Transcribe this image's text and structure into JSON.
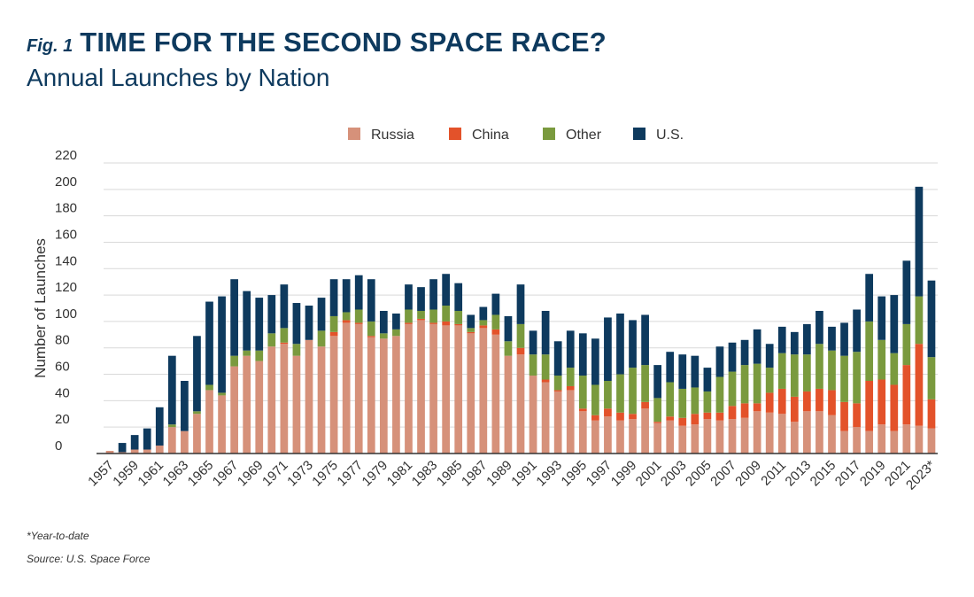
{
  "header": {
    "fig_label": "Fig. 1",
    "title": "TIME FOR THE SECOND SPACE RACE?",
    "subtitle": "Annual Launches by Nation"
  },
  "footer": {
    "note": "*Year-to-date",
    "source": "Source: U.S. Space Force"
  },
  "colors": {
    "Russia": "#d6917a",
    "China": "#e3522a",
    "Other": "#7a9a3e",
    "U.S.": "#0e3a5e"
  },
  "chart_data": {
    "type": "bar",
    "stacked": true,
    "ylabel": "Number of Launches",
    "xlabel": "",
    "ylim": [
      0,
      220
    ],
    "yticks": [
      0,
      20,
      40,
      60,
      80,
      100,
      120,
      140,
      160,
      180,
      200,
      220
    ],
    "grid": true,
    "legend_position": "top",
    "categories": [
      "1957",
      "1958",
      "1959",
      "1960",
      "1961",
      "1962",
      "1963",
      "1964",
      "1965",
      "1966",
      "1967",
      "1968",
      "1969",
      "1970",
      "1971",
      "1972",
      "1973",
      "1974",
      "1975",
      "1976",
      "1977",
      "1978",
      "1979",
      "1980",
      "1981",
      "1982",
      "1983",
      "1984",
      "1985",
      "1986",
      "1987",
      "1988",
      "1989",
      "1990",
      "1991",
      "1992",
      "1993",
      "1994",
      "1995",
      "1996",
      "1997",
      "1998",
      "1999",
      "2000",
      "2001",
      "2002",
      "2003",
      "2004",
      "2005",
      "2006",
      "2007",
      "2008",
      "2009",
      "2010",
      "2011",
      "2012",
      "2013",
      "2014",
      "2015",
      "2016",
      "2017",
      "2018",
      "2019",
      "2020",
      "2021",
      "2022",
      "2023*"
    ],
    "tick_labels": [
      "1957",
      "1959",
      "1961",
      "1963",
      "1965",
      "1967",
      "1969",
      "1971",
      "1973",
      "1975",
      "1977",
      "1979",
      "1981",
      "1983",
      "1985",
      "1987",
      "1989",
      "1991",
      "1993",
      "1995",
      "1997",
      "1999",
      "2001",
      "2003",
      "2005",
      "2007",
      "2009",
      "2011",
      "2013",
      "2015",
      "2017",
      "2019",
      "2021",
      "2023*"
    ],
    "series": [
      {
        "name": "Russia",
        "values": [
          2,
          1,
          3,
          3,
          6,
          20,
          17,
          30,
          48,
          44,
          66,
          74,
          70,
          81,
          83,
          74,
          86,
          81,
          89,
          99,
          98,
          88,
          87,
          89,
          98,
          101,
          98,
          97,
          97,
          91,
          95,
          90,
          74,
          75,
          59,
          54,
          47,
          48,
          32,
          25,
          28,
          25,
          26,
          34,
          23,
          25,
          21,
          22,
          26,
          25,
          26,
          27,
          32,
          31,
          30,
          24,
          32,
          32,
          29,
          17,
          20,
          17,
          22,
          17,
          22,
          21,
          19
        ]
      },
      {
        "name": "China",
        "values": [
          0,
          0,
          0,
          0,
          0,
          0,
          0,
          0,
          0,
          0,
          0,
          0,
          0,
          0,
          1,
          0,
          0,
          0,
          3,
          2,
          1,
          1,
          0,
          0,
          1,
          1,
          1,
          3,
          1,
          1,
          2,
          4,
          0,
          5,
          0,
          2,
          1,
          3,
          2,
          4,
          6,
          6,
          4,
          5,
          1,
          3,
          6,
          8,
          5,
          6,
          10,
          11,
          6,
          15,
          19,
          19,
          15,
          17,
          19,
          22,
          18,
          38,
          34,
          35,
          45,
          62,
          22
        ]
      },
      {
        "name": "Other",
        "values": [
          0,
          0,
          0,
          0,
          0,
          2,
          0,
          2,
          4,
          2,
          8,
          4,
          8,
          10,
          11,
          9,
          0,
          12,
          12,
          6,
          10,
          11,
          4,
          5,
          10,
          6,
          10,
          12,
          10,
          3,
          4,
          11,
          11,
          18,
          16,
          19,
          11,
          14,
          25,
          23,
          21,
          29,
          35,
          28,
          18,
          26,
          22,
          20,
          16,
          27,
          26,
          29,
          30,
          19,
          27,
          32,
          28,
          34,
          30,
          35,
          39,
          45,
          30,
          24,
          31,
          36,
          32
        ]
      },
      {
        "name": "U.S.",
        "values": [
          0,
          7,
          11,
          16,
          29,
          52,
          38,
          57,
          63,
          73,
          58,
          45,
          40,
          29,
          33,
          31,
          26,
          25,
          28,
          25,
          26,
          32,
          17,
          12,
          19,
          18,
          23,
          24,
          21,
          10,
          10,
          16,
          19,
          30,
          18,
          33,
          26,
          28,
          32,
          35,
          48,
          46,
          36,
          38,
          25,
          23,
          26,
          24,
          18,
          23,
          22,
          19,
          26,
          18,
          20,
          17,
          23,
          25,
          18,
          25,
          32,
          36,
          33,
          44,
          48,
          83,
          58
        ]
      }
    ]
  }
}
